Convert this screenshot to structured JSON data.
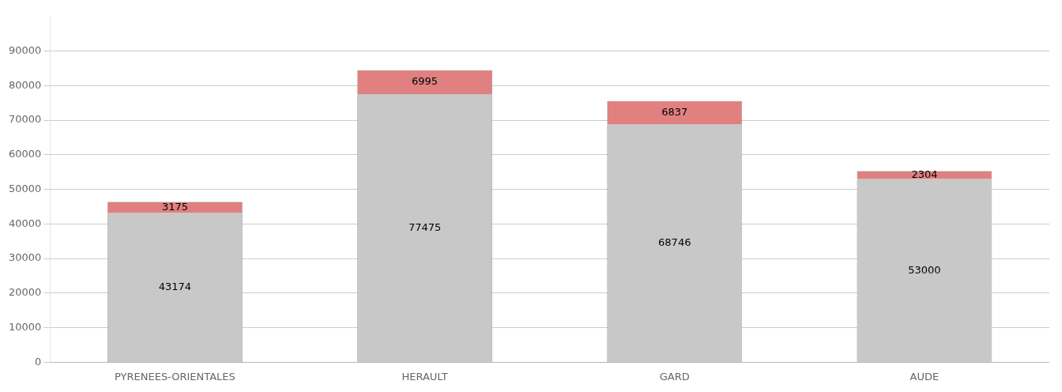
{
  "chart_data": {
    "type": "bar",
    "stacked": true,
    "data_labels": true,
    "grid": true,
    "categories": [
      "PYRENEES-ORIENTALES",
      "HERAULT",
      "GARD",
      "AUDE"
    ],
    "series": [
      {
        "color": "#C8C8C8",
        "values": [
          43174,
          77475,
          68746,
          53000
        ]
      },
      {
        "color": "#E08080",
        "values": [
          3175,
          6995,
          6837,
          2304
        ]
      }
    ],
    "ylim": [
      0,
      100000
    ],
    "yticks": [
      0,
      10000,
      20000,
      30000,
      40000,
      50000,
      60000,
      70000,
      80000,
      90000
    ]
  }
}
